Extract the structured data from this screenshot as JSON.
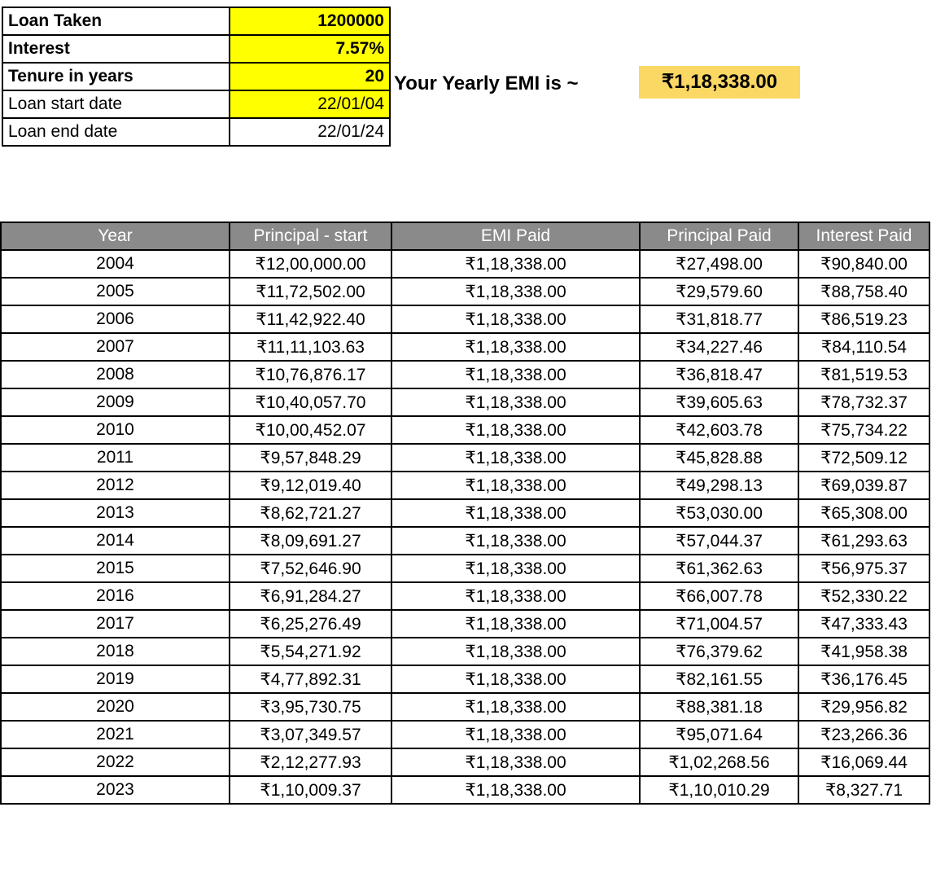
{
  "loan_info": {
    "rows": [
      {
        "label": "Loan Taken",
        "value": "1200000"
      },
      {
        "label": "Interest",
        "value": "7.57%"
      },
      {
        "label": "Tenure in years",
        "value": "20"
      },
      {
        "label": "Loan start date",
        "value": "22/01/04"
      },
      {
        "label": "Loan end date",
        "value": "22/01/24"
      }
    ]
  },
  "emi": {
    "label": "Your Yearly EMI is ~",
    "value": "₹1,18,338.00"
  },
  "amortization": {
    "headers": [
      "Year",
      "Principal - start",
      "EMI Paid",
      "Principal Paid",
      "Interest Paid"
    ],
    "rows": [
      [
        "2004",
        "₹12,00,000.00",
        "₹1,18,338.00",
        "₹27,498.00",
        "₹90,840.00"
      ],
      [
        "2005",
        "₹11,72,502.00",
        "₹1,18,338.00",
        "₹29,579.60",
        "₹88,758.40"
      ],
      [
        "2006",
        "₹11,42,922.40",
        "₹1,18,338.00",
        "₹31,818.77",
        "₹86,519.23"
      ],
      [
        "2007",
        "₹11,11,103.63",
        "₹1,18,338.00",
        "₹34,227.46",
        "₹84,110.54"
      ],
      [
        "2008",
        "₹10,76,876.17",
        "₹1,18,338.00",
        "₹36,818.47",
        "₹81,519.53"
      ],
      [
        "2009",
        "₹10,40,057.70",
        "₹1,18,338.00",
        "₹39,605.63",
        "₹78,732.37"
      ],
      [
        "2010",
        "₹10,00,452.07",
        "₹1,18,338.00",
        "₹42,603.78",
        "₹75,734.22"
      ],
      [
        "2011",
        "₹9,57,848.29",
        "₹1,18,338.00",
        "₹45,828.88",
        "₹72,509.12"
      ],
      [
        "2012",
        "₹9,12,019.40",
        "₹1,18,338.00",
        "₹49,298.13",
        "₹69,039.87"
      ],
      [
        "2013",
        "₹8,62,721.27",
        "₹1,18,338.00",
        "₹53,030.00",
        "₹65,308.00"
      ],
      [
        "2014",
        "₹8,09,691.27",
        "₹1,18,338.00",
        "₹57,044.37",
        "₹61,293.63"
      ],
      [
        "2015",
        "₹7,52,646.90",
        "₹1,18,338.00",
        "₹61,362.63",
        "₹56,975.37"
      ],
      [
        "2016",
        "₹6,91,284.27",
        "₹1,18,338.00",
        "₹66,007.78",
        "₹52,330.22"
      ],
      [
        "2017",
        "₹6,25,276.49",
        "₹1,18,338.00",
        "₹71,004.57",
        "₹47,333.43"
      ],
      [
        "2018",
        "₹5,54,271.92",
        "₹1,18,338.00",
        "₹76,379.62",
        "₹41,958.38"
      ],
      [
        "2019",
        "₹4,77,892.31",
        "₹1,18,338.00",
        "₹82,161.55",
        "₹36,176.45"
      ],
      [
        "2020",
        "₹3,95,730.75",
        "₹1,18,338.00",
        "₹88,381.18",
        "₹29,956.82"
      ],
      [
        "2021",
        "₹3,07,349.57",
        "₹1,18,338.00",
        "₹95,071.64",
        "₹23,266.36"
      ],
      [
        "2022",
        "₹2,12,277.93",
        "₹1,18,338.00",
        "₹1,02,268.56",
        "₹16,069.44"
      ],
      [
        "2023",
        "₹1,10,009.37",
        "₹1,18,338.00",
        "₹1,10,010.29",
        "₹8,327.71"
      ]
    ]
  },
  "colors": {
    "input_highlight": "#FFFF00",
    "emi_highlight": "#FBD763",
    "header_bg": "#8A8A8A",
    "border": "#000000"
  }
}
